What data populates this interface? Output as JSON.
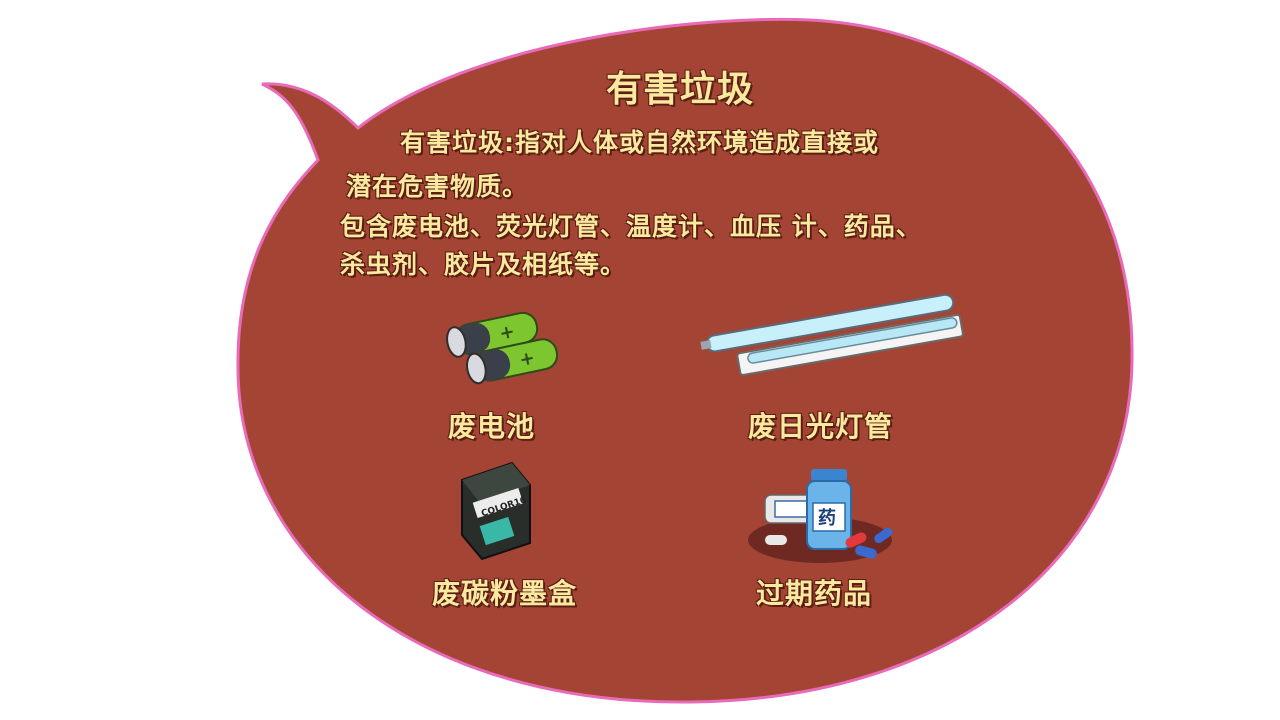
{
  "slide": {
    "title": "有害垃圾",
    "description": {
      "line1": "有害垃圾:指对人体或自然环境造成直接或",
      "line2": "潜在危害物质。",
      "line3": "包含废电池、荧光灯管、温度计、血压 计、药品、",
      "line4": "杀虫剂、胶片及相纸等。"
    },
    "items": [
      {
        "label": "废电池",
        "icon": "battery-icon"
      },
      {
        "label": "废日光灯管",
        "icon": "fluorescent-tube-icon"
      },
      {
        "label": "废碳粉墨盒",
        "icon": "toner-cartridge-icon"
      },
      {
        "label": "过期药品",
        "icon": "medicine-bottle-icon"
      }
    ],
    "icon_text": {
      "cartridge_label": "COLOR16",
      "medicine_label": "药"
    }
  },
  "colors": {
    "bubble_fill": "#a44434",
    "bubble_border": "#e86ab8",
    "text": "#fbe9a0"
  }
}
